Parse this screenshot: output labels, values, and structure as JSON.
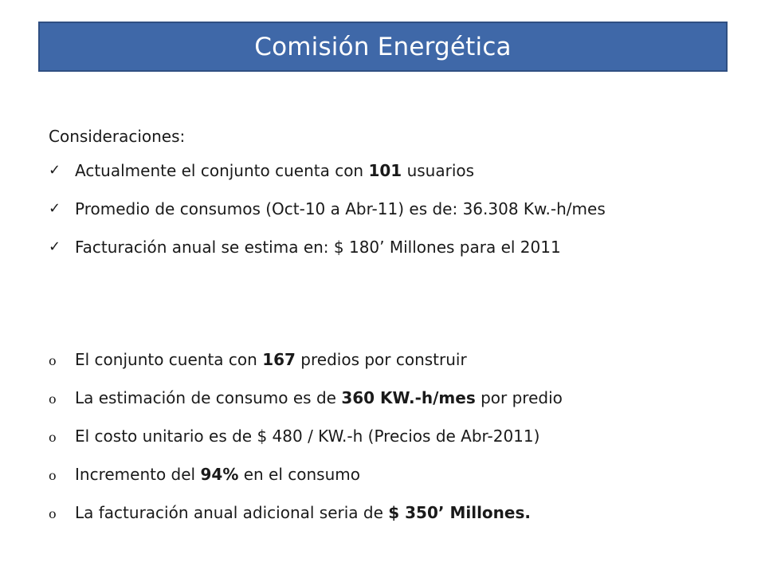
{
  "title": "Comisión Energética",
  "intro": "Consideraciones:",
  "check_items": [
    {
      "marker": "✓",
      "pre": "Actualmente el conjunto cuenta con ",
      "bold": "101",
      "post": " usuarios"
    },
    {
      "marker": "✓",
      "pre": "Promedio de consumos (Oct-10 a Abr-11) es de: 36.308 Kw.-h/mes",
      "bold": "",
      "post": ""
    },
    {
      "marker": "✓",
      "pre": "Facturación anual se estima en: $ 180’ Millones para el 2011",
      "bold": "",
      "post": ""
    }
  ],
  "circle_items": [
    {
      "marker": "o",
      "pre": "El conjunto cuenta con ",
      "bold": "167",
      "post": " predios por construir"
    },
    {
      "marker": "o",
      "pre": "La estimación de consumo es de ",
      "bold": "360 KW.-h/mes",
      "post": " por predio"
    },
    {
      "marker": "o",
      "pre": "El costo unitario es de $ 480 / KW.-h (Precios de Abr-2011)",
      "bold": "",
      "post": ""
    },
    {
      "marker": "o",
      "pre": "Incremento del ",
      "bold": "94%",
      "post": " en el consumo"
    },
    {
      "marker": "o",
      "pre": "La facturación anual adicional seria de ",
      "bold": "$ 350’ Millones.",
      "post": ""
    }
  ]
}
